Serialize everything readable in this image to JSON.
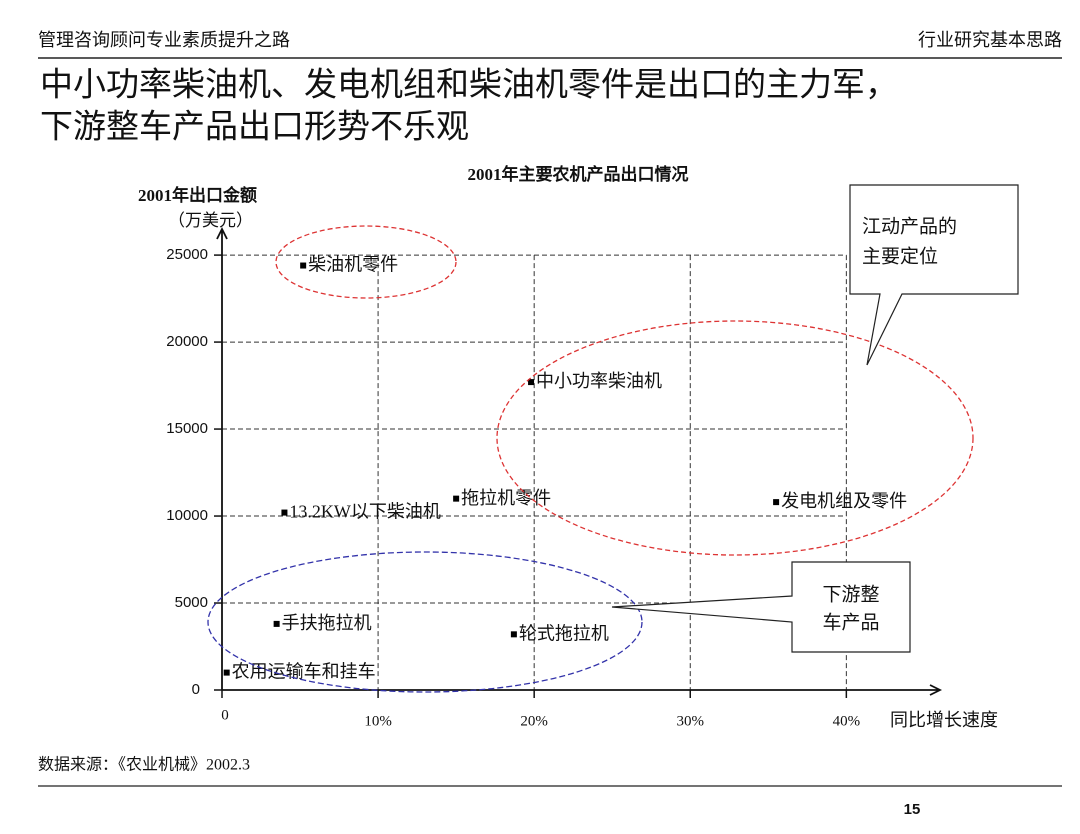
{
  "header": {
    "left": "管理咨询顾问专业素质提升之路",
    "right": "行业研究基本思路"
  },
  "slide_title": [
    "中小功率柴油机、发电机组和柴油机零件是出口的主力军，",
    "下游整车产品出口形势不乐观"
  ],
  "chart_data": {
    "type": "scatter",
    "title": "2001年主要农机产品出口情况",
    "y_label": [
      "2001年出口金额",
      "（万美元）"
    ],
    "x_label": "同比增长速度",
    "categories": [
      "柴油机零件",
      "中小功率柴油机",
      "13.2KW以下柴油机",
      "拖拉机零件",
      "发电机组及零件",
      "手扶拖拉机",
      "轮式拖拉机",
      "农用运输车和挂车"
    ],
    "x": [
      5.2,
      19.8,
      4.0,
      15.0,
      35.5,
      3.5,
      18.7,
      0.3
    ],
    "values": [
      24400,
      17700,
      10200,
      11000,
      10800,
      3800,
      3200,
      1000
    ],
    "color": "#000000",
    "xlim": [
      0,
      46
    ],
    "ylim": [
      0,
      26500
    ],
    "xticks": [
      0,
      {
        "value": 10,
        "label": "10%"
      },
      {
        "value": 20,
        "label": "20%"
      },
      {
        "value": 30,
        "label": "30%"
      },
      {
        "value": 40,
        "label": "40%"
      }
    ],
    "yticks": [
      0,
      5000,
      10000,
      15000,
      20000,
      25000
    ],
    "grid": true,
    "annotations": [
      [
        "江动产品的",
        "主要定位"
      ],
      [
        "下游整",
        "车产品"
      ]
    ]
  },
  "source": "数据来源：《农业机械》2002.3",
  "page_number": "15"
}
